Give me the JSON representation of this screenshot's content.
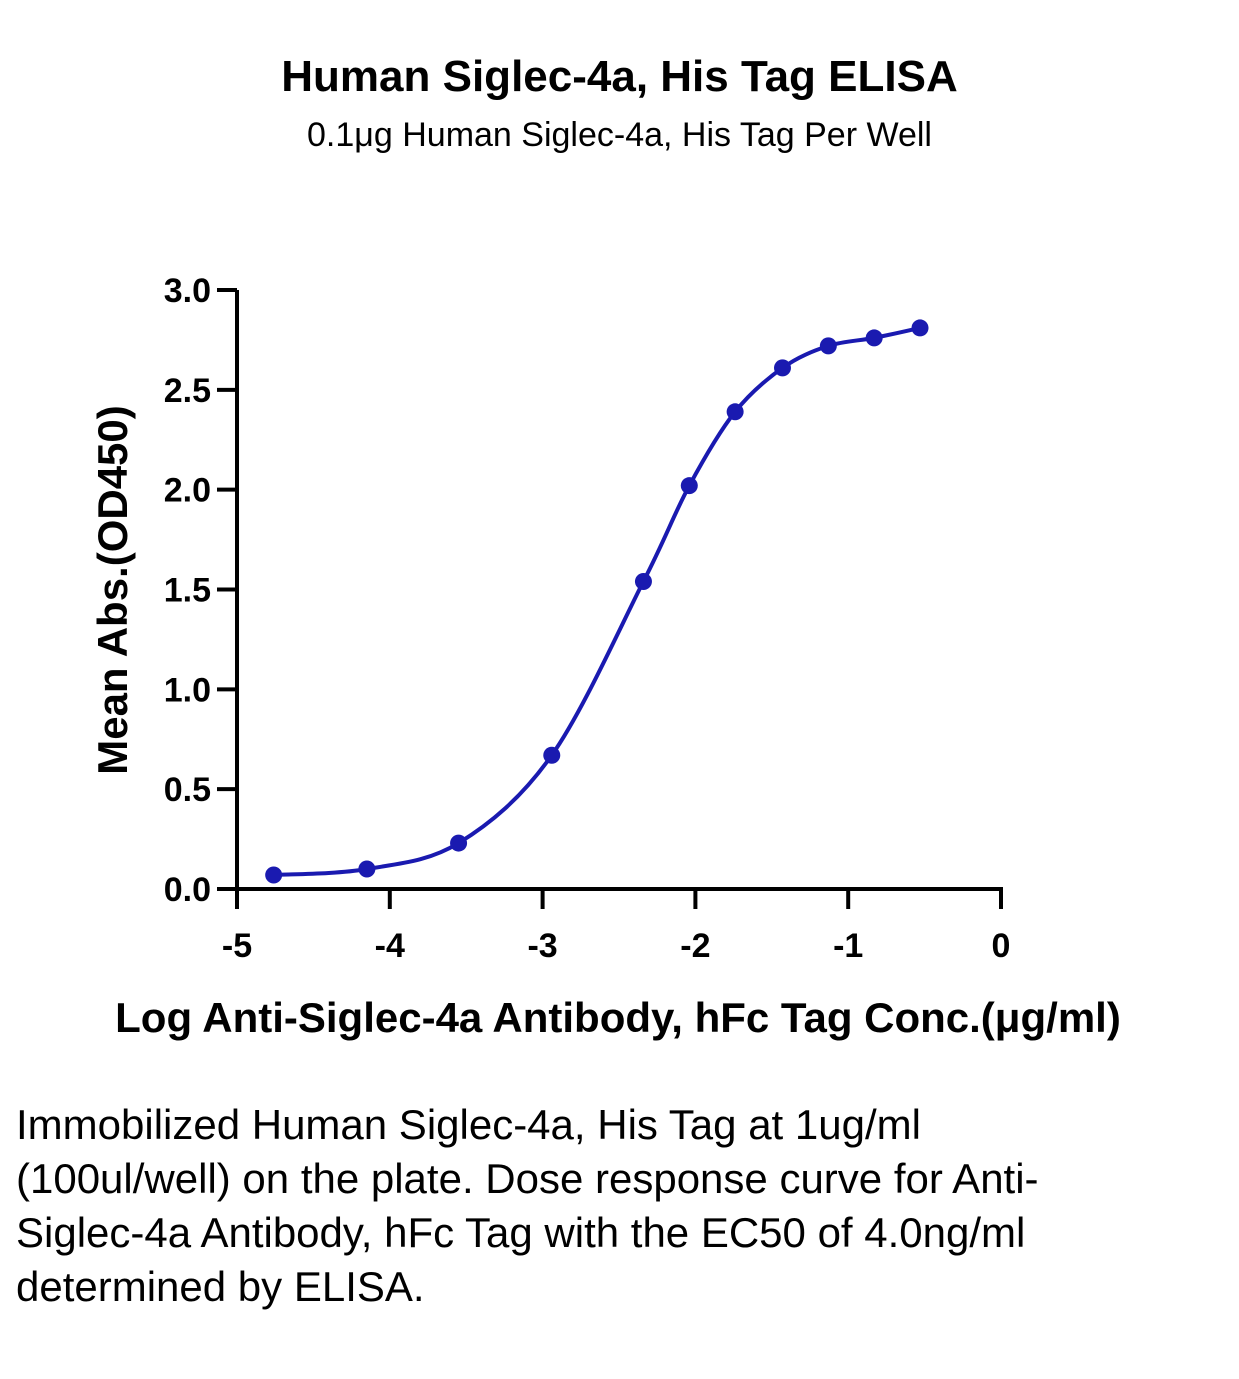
{
  "chart_data": {
    "type": "scatter",
    "title": "Human Siglec-4a, His Tag ELISA",
    "subtitle": "0.1μg Human Siglec-4a, His Tag Per Well",
    "xlabel": "Log Anti-Siglec-4a Antibody, hFc  Tag Conc.(μg/ml)",
    "ylabel": "Mean Abs.(OD450)",
    "xlim": [
      -5,
      0
    ],
    "ylim": [
      0,
      3.0
    ],
    "x_ticks": [
      "-5",
      "-4",
      "-3",
      "-2",
      "-1",
      "0"
    ],
    "y_ticks": [
      "0.0",
      "0.5",
      "1.0",
      "1.5",
      "2.0",
      "2.5",
      "3.0"
    ],
    "grid": false,
    "legend": "none",
    "series_color": "#1a1ab0",
    "fit": "four-parameter logistic",
    "series": [
      {
        "x": [
          -4.76,
          -4.15,
          -3.55,
          -2.94,
          -2.34,
          -2.04,
          -1.74,
          -1.43,
          -1.13,
          -0.83,
          -0.53
        ],
        "y": [
          0.07,
          0.1,
          0.23,
          0.67,
          1.54,
          2.02,
          2.39,
          2.61,
          2.72,
          2.76,
          2.81
        ]
      }
    ]
  },
  "caption": "Immobilized Human Siglec-4a, His Tag at 1ug/ml (100ul/well) on the plate. Dose response curve for Anti-Siglec-4a Antibody, hFc Tag with the EC50 of 4.0ng/ml determined by ELISA."
}
